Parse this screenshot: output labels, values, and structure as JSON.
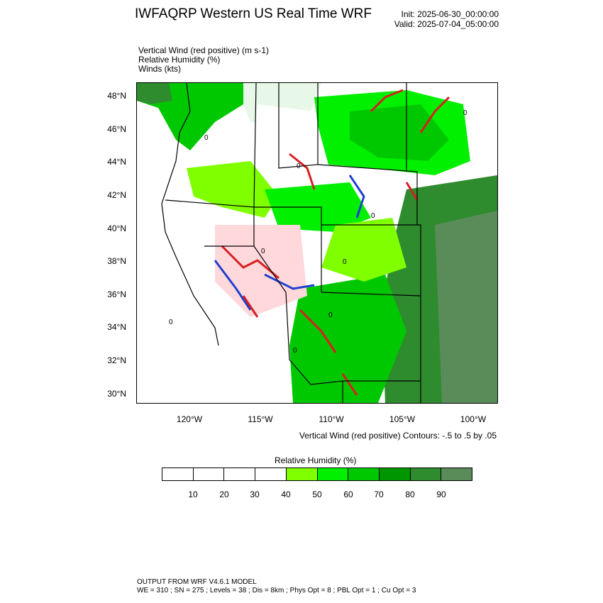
{
  "header": {
    "title": "IWFAQRP Western US Real Time WRF",
    "init": "Init: 2025-06-30_00:00:00",
    "valid": "Valid: 2025-07-04_05:00:00"
  },
  "fields": {
    "vertical_wind": "Vertical Wind (red positive)   (m s-1)",
    "relative_humidity": "Relative Humidity   (%)",
    "winds": "Winds   (kts)"
  },
  "map": {
    "latitude_labels": [
      "48°N",
      "46°N",
      "44°N",
      "42°N",
      "40°N",
      "38°N",
      "36°N",
      "34°N",
      "32°N",
      "30°N"
    ],
    "longitude_labels": [
      "120°W",
      "115°W",
      "110°W",
      "105°W",
      "100°W"
    ],
    "contour_value": "0",
    "colors": {
      "rising_motion": "#d62020",
      "sinking_motion": "#2040d0",
      "land_outline": "#000000"
    }
  },
  "contours_caption": "Vertical Wind (red positive) Contours: -.5 to .5 by .05",
  "colorbar": {
    "title": "Relative Humidity   (%)",
    "labels": [
      "10",
      "20",
      "30",
      "40",
      "50",
      "60",
      "70",
      "80",
      "90"
    ],
    "colors": [
      "#ffffff",
      "#ffffff",
      "#ffffff",
      "#ffffff",
      "#80ff00",
      "#00f000",
      "#00c800",
      "#009600",
      "#2e8b2e",
      "#5a8c5a"
    ]
  },
  "footer": {
    "line1": "OUTPUT FROM WRF V4.6.1 MODEL",
    "line2": "WE = 310 ; SN = 275 ; Levels = 38 ; Dis = 8km ; Phys Opt = 8 ; PBL Opt = 1 ; Cu Opt = 3"
  }
}
